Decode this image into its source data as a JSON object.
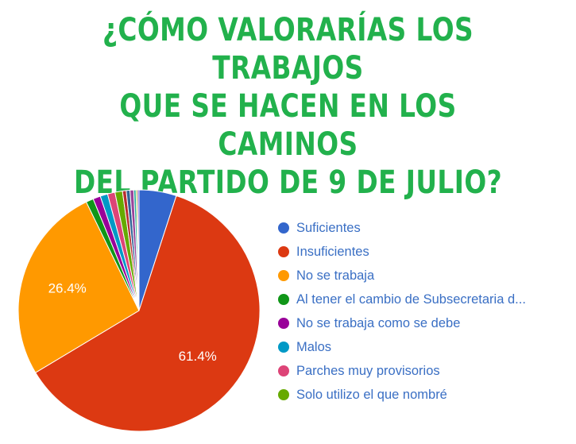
{
  "title_lines": [
    "¿CÓMO VALORARÍAS LOS TRABAJOS",
    "QUE SE HACEN EN LOS CAMINOS",
    "DEL PARTIDO DE 9 DE JULIO?"
  ],
  "chart_data": {
    "type": "pie",
    "title": "¿CÓMO VALORARÍAS LOS TRABAJOS QUE SE HACEN EN LOS CAMINOS DEL PARTIDO DE 9 DE JULIO?",
    "legend_position": "right",
    "start_angle_deg": 90,
    "direction": "clockwise",
    "slices": [
      {
        "label": "Suficientes",
        "value": 5.0,
        "color": "#3366cc",
        "data_label": ""
      },
      {
        "label": "Insuficientes",
        "value": 61.4,
        "color": "#dc3912",
        "data_label": "61.4%"
      },
      {
        "label": "No se trabaja",
        "value": 26.4,
        "color": "#ff9900",
        "data_label": "26.4%"
      },
      {
        "label": "Al tener el cambio de Subsecretaria d...",
        "value": 1.0,
        "color": "#109618",
        "data_label": ""
      },
      {
        "label": "No se trabaja como se debe",
        "value": 1.0,
        "color": "#990099",
        "data_label": ""
      },
      {
        "label": "Malos",
        "value": 1.0,
        "color": "#0099c6",
        "data_label": ""
      },
      {
        "label": "Parches muy provisorios",
        "value": 1.0,
        "color": "#dd4477",
        "data_label": ""
      },
      {
        "label": "Solo utilizo el que nombré",
        "value": 1.0,
        "color": "#66aa00",
        "data_label": ""
      },
      {
        "label": "",
        "value": 0.5,
        "color": "#b82e2e",
        "data_label": ""
      },
      {
        "label": "",
        "value": 0.5,
        "color": "#316395",
        "data_label": ""
      },
      {
        "label": "",
        "value": 0.5,
        "color": "#994499",
        "data_label": ""
      },
      {
        "label": "",
        "value": 0.3,
        "color": "#22aa99",
        "data_label": ""
      },
      {
        "label": "",
        "value": 0.2,
        "color": "#aaaa11",
        "data_label": ""
      },
      {
        "label": "",
        "value": 0.2,
        "color": "#6633cc",
        "data_label": ""
      }
    ],
    "legend": [
      {
        "label": "Suficientes",
        "color": "#3366cc"
      },
      {
        "label": "Insuficientes",
        "color": "#dc3912"
      },
      {
        "label": "No se trabaja",
        "color": "#ff9900"
      },
      {
        "label": "Al tener el cambio de Subsecretaria d...",
        "color": "#109618"
      },
      {
        "label": "No se trabaja como se debe",
        "color": "#990099"
      },
      {
        "label": "Malos",
        "color": "#0099c6"
      },
      {
        "label": "Parches muy provisorios",
        "color": "#dd4477"
      },
      {
        "label": "Solo utilizo el que nombré",
        "color": "#66aa00"
      }
    ]
  }
}
